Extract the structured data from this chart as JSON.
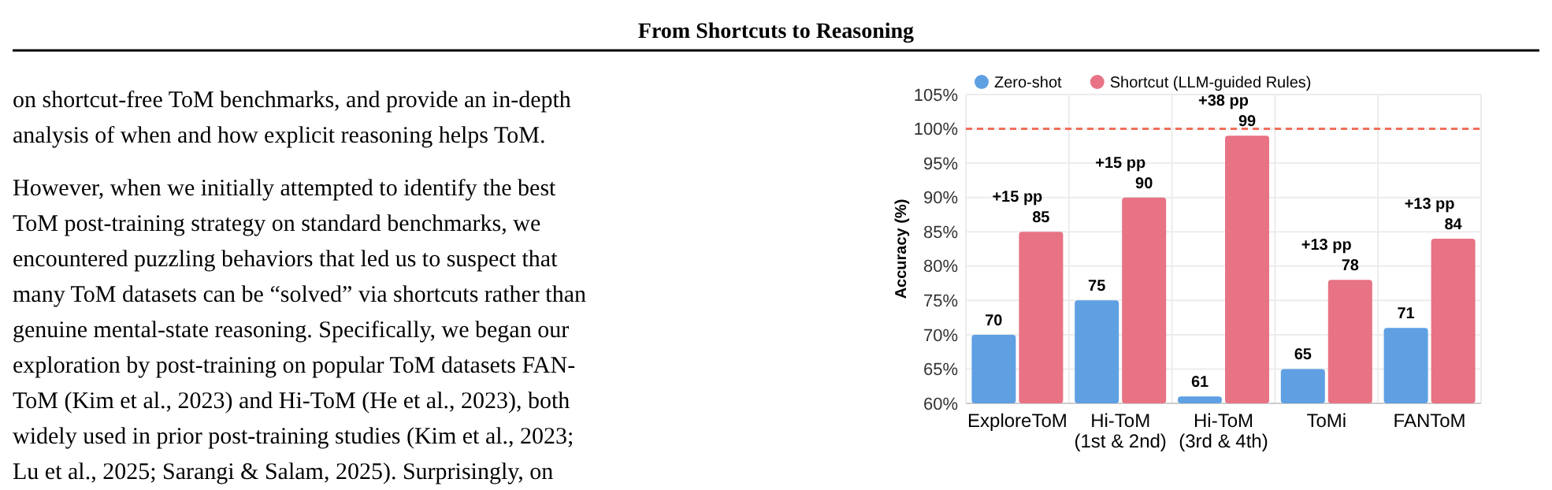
{
  "chart_data": {
    "type": "bar",
    "title": "From Shortcuts to Reasoning",
    "ylabel": "Accuracy (%)",
    "categories": [
      "ExploreToM",
      "Hi-ToM\n(1st & 2nd)",
      "Hi-ToM\n(3rd & 4th)",
      "ToMi",
      "FANToM"
    ],
    "series": [
      {
        "name": "Zero-shot",
        "color": "#5fa0e3",
        "values": [
          70,
          75,
          61,
          65,
          71
        ]
      },
      {
        "name": "Shortcut (LLM-guided Rules)",
        "color": "#e77384",
        "values": [
          85,
          90,
          99,
          78,
          84
        ]
      }
    ],
    "ylim": [
      60,
      105
    ],
    "yticks": [
      {
        "value": 60,
        "label": "60%"
      },
      {
        "value": 65,
        "label": "65%"
      },
      {
        "value": 70,
        "label": "70%"
      },
      {
        "value": 75,
        "label": "75%"
      },
      {
        "value": 80,
        "label": "80%"
      },
      {
        "value": 85,
        "label": "85%"
      },
      {
        "value": 90,
        "label": "90%"
      },
      {
        "value": 95,
        "label": "95%"
      },
      {
        "value": 100,
        "label": "100%"
      },
      {
        "value": 105,
        "label": "105%"
      }
    ],
    "grid": true,
    "legend": "top",
    "data_labels": true,
    "ref_lines": [
      {
        "axis": "y",
        "value": 100,
        "label": null,
        "color": "#f0705a",
        "line_style": "dashed"
      }
    ],
    "annotations": [
      "on shortcut-free ToM benchmarks, and provide an in-depth\nanalysis of when and how explicit reasoning helps ToM.",
      "However, when we initially attempted to identify the best\nToM post-training strategy on standard benchmarks, we\nencountered puzzling behaviors that led us to suspect that\nmany ToM datasets can be “solved” via shortcuts rather than\ngenuine mental-state reasoning. Specifically, we began our\nexploration by post-training on popular ToM datasets FAN-\nToM (Kim et al., 2023) and Hi-ToM (He et al., 2023), both\nwidely used in prior post-training studies (Kim et al., 2023;\nLu et al., 2025; Sarangi & Salam, 2025). Surprisingly, on",
      {
        "text": "+15 pp",
        "x": "ExploreToM",
        "y": 85
      },
      {
        "text": "+15 pp",
        "x": "Hi-ToM\n(1st & 2nd)",
        "y": 90
      },
      {
        "text": "+38 pp",
        "x": "Hi-ToM\n(3rd & 4th)",
        "y": 99
      },
      {
        "text": "+13 pp",
        "x": "ToMi",
        "y": 78
      },
      {
        "text": "+13 pp",
        "x": "FANToM",
        "y": 84
      }
    ]
  }
}
